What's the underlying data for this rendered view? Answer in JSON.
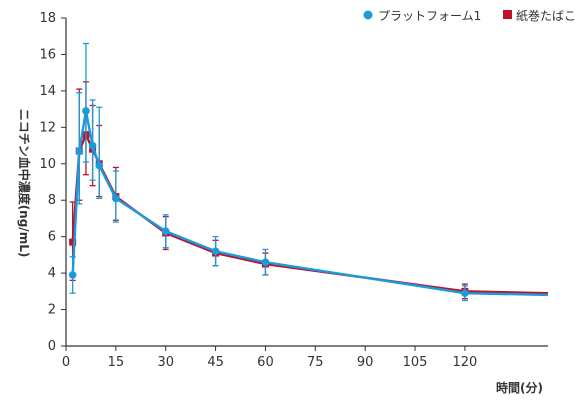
{
  "chart_data": {
    "type": "line",
    "xlabel": "時間(分)",
    "ylabel": "ニコチン血中濃度(ng/mL)",
    "xlim": [
      0,
      145
    ],
    "ylim": [
      0,
      18
    ],
    "xticks": [
      "0",
      "15",
      "30",
      "45",
      "60",
      "75",
      "90",
      "105",
      "120"
    ],
    "yticks": [
      "0",
      "2",
      "4",
      "6",
      "8",
      "10",
      "12",
      "14",
      "16",
      "18"
    ],
    "grid": false,
    "legend_position": "top-right",
    "series": [
      {
        "name": "プラットフォーム1",
        "color": "#1a9bdb",
        "marker": "circle",
        "x": [
          2,
          4,
          6,
          8,
          10,
          15,
          30,
          45,
          60,
          120,
          145
        ],
        "y": [
          3.9,
          10.7,
          12.9,
          11.0,
          9.9,
          8.1,
          6.3,
          5.2,
          4.6,
          2.9,
          2.8
        ],
        "err_low": [
          1.0,
          2.9,
          2.8,
          1.9,
          1.8,
          1.3,
          0.9,
          0.8,
          0.7,
          0.4,
          null
        ],
        "err_high": [
          1.0,
          3.2,
          3.7,
          2.5,
          3.2,
          1.5,
          0.9,
          0.8,
          0.7,
          0.4,
          null
        ]
      },
      {
        "name": "紙巻たばこ",
        "color": "#c0112b",
        "marker": "square",
        "x": [
          2,
          4,
          6,
          8,
          10,
          15,
          30,
          45,
          60,
          120,
          145
        ],
        "y": [
          5.7,
          10.7,
          11.6,
          10.8,
          10.0,
          8.2,
          6.2,
          5.1,
          4.5,
          3.0,
          2.9
        ],
        "err_low": [
          2.1,
          2.7,
          2.2,
          2.0,
          1.8,
          1.3,
          0.9,
          0.7,
          0.6,
          0.4,
          null
        ],
        "err_high": [
          2.2,
          3.4,
          2.9,
          2.4,
          2.1,
          1.6,
          0.9,
          0.7,
          0.6,
          0.4,
          null
        ]
      }
    ]
  }
}
